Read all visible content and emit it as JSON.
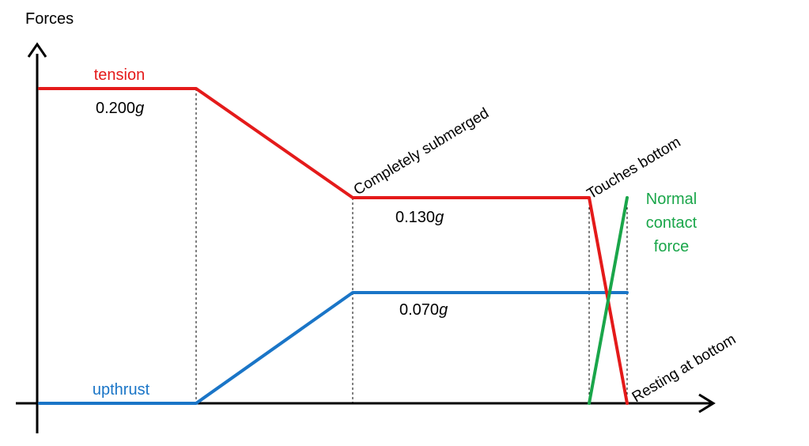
{
  "diagram": {
    "y_axis_label": "Forces",
    "series": {
      "tension": {
        "label": "tension",
        "color": "#e41a1a"
      },
      "upthrust": {
        "label": "upthrust",
        "color": "#1a75c7"
      },
      "normal": {
        "label_lines": [
          "Normal",
          "contact",
          "force"
        ],
        "color": "#1aa64a"
      }
    },
    "values": {
      "tension_initial": {
        "number": "0.200",
        "unit": "g"
      },
      "tension_submerged": {
        "number": "0.130",
        "unit": "g"
      },
      "upthrust_submerged": {
        "number": "0.070",
        "unit": "g"
      }
    },
    "annotations": {
      "completely_submerged": "Completely submerged",
      "touches_bottom": "Touches bottom",
      "resting_at_bottom": "Resting at bottom"
    },
    "colors": {
      "axes": "#000000",
      "guides": "#000000"
    }
  }
}
